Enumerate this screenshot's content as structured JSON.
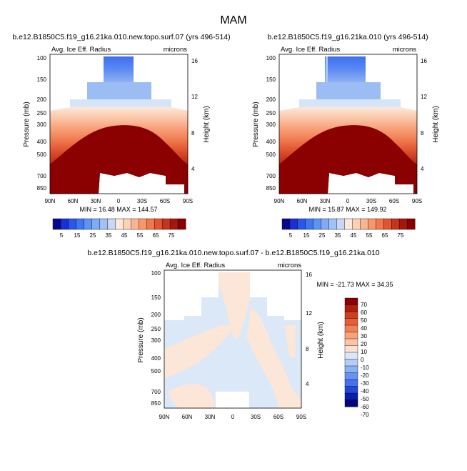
{
  "page_title": "MAM",
  "chart_data": [
    {
      "type": "heatmap",
      "id": "upper-left",
      "title": "b.e12.B1850C5.f19_g16.21ka.010.new.topo.surf.07 (yrs 496-514)",
      "left_label": "Avg. Ice Eff. Radius",
      "right_label": "microns",
      "ylabel": "Pressure (mb)",
      "y2label": "Height (km)",
      "x_ticks": [
        "90N",
        "60N",
        "30N",
        "0",
        "30S",
        "60S",
        "90S"
      ],
      "y_ticks": [
        "100",
        "150",
        "200",
        "250",
        "300",
        "400",
        "500",
        "700",
        "850"
      ],
      "y2_ticks": [
        "16",
        "12",
        "8",
        "4"
      ],
      "stats": "MIN = 16.48 MAX = 144.57"
    },
    {
      "type": "heatmap",
      "id": "upper-right",
      "title": "b.e12.B1850C5.f19_g16.21ka.010 (yrs 496-514)",
      "left_label": "Avg. Ice Eff. Radius",
      "right_label": "microns",
      "ylabel": "Pressure (mb)",
      "y2label": "Height (km)",
      "x_ticks": [
        "90N",
        "60N",
        "30N",
        "0",
        "30S",
        "60S",
        "90S"
      ],
      "y_ticks": [
        "100",
        "150",
        "200",
        "250",
        "300",
        "400",
        "500",
        "700",
        "850"
      ],
      "y2_ticks": [
        "16",
        "12",
        "8",
        "4"
      ],
      "stats": "MIN = 15.87 MAX = 149.92"
    },
    {
      "type": "heatmap",
      "id": "difference",
      "title": "b.e12.B1850C5.f19_g16.21ka.010.new.topo.surf.07 - b.e12.B1850C5.f19_g16.21ka.010",
      "left_label": "Avg. Ice Eff. Radius",
      "right_label": "microns",
      "ylabel": "Pressure (mb)",
      "y2label": "Height (km)",
      "x_ticks": [
        "90N",
        "60N",
        "30N",
        "0",
        "30S",
        "60S",
        "90S"
      ],
      "y_ticks": [
        "100",
        "150",
        "200",
        "250",
        "300",
        "400",
        "500",
        "700",
        "850"
      ],
      "y2_ticks": [
        "16",
        "12",
        "8",
        "4"
      ],
      "stats": "MIN = -21.73 MAX = 34.35"
    }
  ],
  "colorbar_top": {
    "labels": [
      "5",
      "15",
      "25",
      "35",
      "45",
      "55",
      "65",
      "75"
    ],
    "colors": [
      "#08088e",
      "#1a2fd6",
      "#2a56ec",
      "#3f77f3",
      "#5c93f5",
      "#7faaf6",
      "#a3c1f7",
      "#c7d7f7",
      "#fde8da",
      "#fcd1b7",
      "#fbb592",
      "#f8976c",
      "#f3774b",
      "#e4532f",
      "#c93319",
      "#a7160c",
      "#8a0000"
    ]
  },
  "colorbar_diff": {
    "labels": [
      "70",
      "60",
      "50",
      "40",
      "30",
      "20",
      "10",
      "0",
      "-10",
      "-20",
      "-30",
      "-40",
      "-50",
      "-60",
      "-70"
    ],
    "colors": [
      "#8a0000",
      "#b01e0c",
      "#cf3e1e",
      "#e65e37",
      "#f37f55",
      "#f8a27b",
      "#fbc4a4",
      "#fde0cf",
      "#d7e8f8",
      "#b4cdf5",
      "#8fb0f3",
      "#6a91f1",
      "#4570ee",
      "#2248d8",
      "#0a1fa8",
      "#06067a"
    ]
  },
  "colors": {
    "dark_red": "#8b0000",
    "pale_orange": "#fce6d8",
    "pale_blue": "#dbe8f8"
  }
}
